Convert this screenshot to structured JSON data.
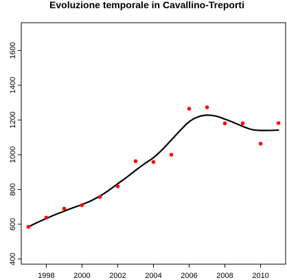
{
  "chart_data": {
    "type": "scatter",
    "title": "Evoluzione temporale in Cavallino-Treporti",
    "xlabel": "",
    "ylabel": "",
    "xlim": [
      1996.6,
      2011.4
    ],
    "ylim": [
      370,
      1760
    ],
    "x_ticks": [
      1998,
      2000,
      2002,
      2004,
      2006,
      2008,
      2010
    ],
    "x_tick_labels": [
      "1998",
      "2000",
      "2002",
      "2004",
      "2006",
      "2008",
      "2010"
    ],
    "y_ticks": [
      400,
      600,
      800,
      1000,
      1200,
      1400,
      1600
    ],
    "y_tick_labels": [
      "400",
      "600",
      "800",
      "1000",
      "1200",
      "1400",
      "1600"
    ],
    "grid": false,
    "legend": "none",
    "point_color": "#ff0000",
    "line_color": "#000000",
    "series": [
      {
        "type": "points",
        "x": [
          1997,
          1998,
          1999,
          2000,
          2001,
          2002,
          2003,
          2004,
          2005,
          2006,
          2007,
          2008,
          2009,
          2010,
          2011
        ],
        "y": [
          585,
          638,
          690,
          710,
          757,
          818,
          963,
          958,
          1000,
          1265,
          1273,
          1181,
          1181,
          1064,
          1182
        ]
      },
      {
        "type": "line",
        "x": [
          1997,
          1997.5,
          1998,
          1998.5,
          1999,
          1999.5,
          2000,
          2000.5,
          2001,
          2001.5,
          2002,
          2002.5,
          2003,
          2003.5,
          2004,
          2004.5,
          2005,
          2005.5,
          2006,
          2006.5,
          2007,
          2007.5,
          2008,
          2008.5,
          2009,
          2009.5,
          2010,
          2010.5,
          2011
        ],
        "y": [
          585,
          610,
          633,
          655,
          675,
          695,
          713,
          735,
          762,
          795,
          833,
          870,
          910,
          948,
          983,
          1030,
          1085,
          1140,
          1190,
          1218,
          1228,
          1222,
          1205,
          1185,
          1163,
          1145,
          1140,
          1140,
          1142
        ]
      }
    ]
  }
}
